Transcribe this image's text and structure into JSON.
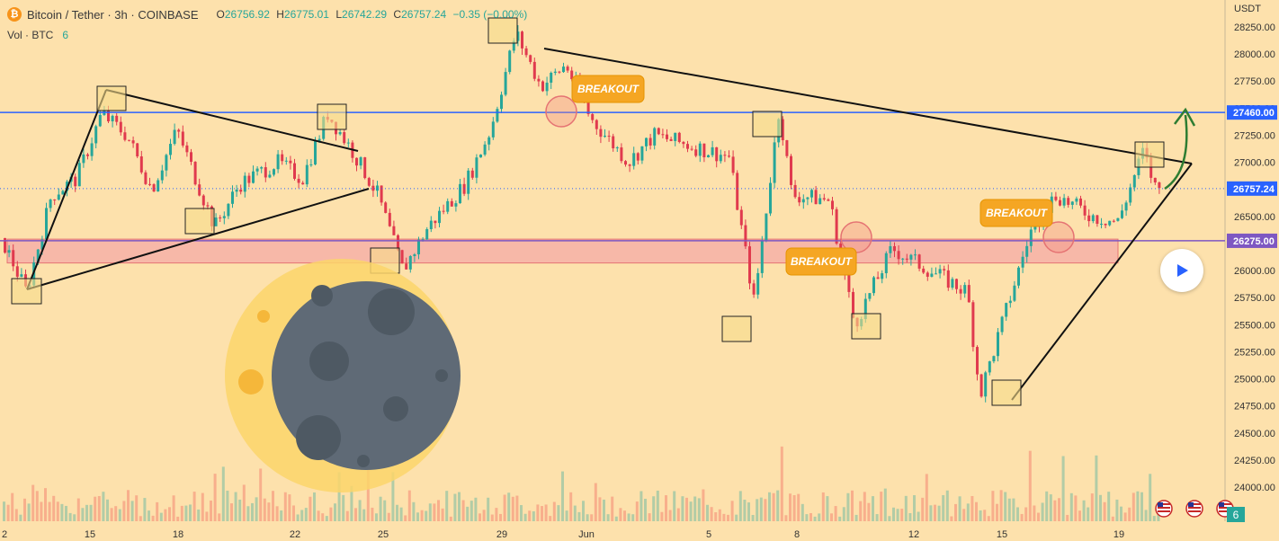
{
  "header": {
    "coin_icon": "bitcoin-icon",
    "symbol": "Bitcoin / Tether · 3h · COINBASE",
    "o_label": "O",
    "o_value": "26756.92",
    "h_label": "H",
    "h_value": "26775.01",
    "l_label": "L",
    "l_value": "26742.29",
    "c_label": "C",
    "c_value": "26757.24",
    "change": "−0.35 (−0.00%)"
  },
  "volume_legend": {
    "label": "Vol · BTC",
    "value": "6"
  },
  "price_axis": {
    "currency": "USDT"
  },
  "badges": {
    "volume_value": "6"
  },
  "colors": {
    "up": "#26a69a",
    "down": "#e03a4e",
    "background": "#fde1ac",
    "accent_line": "#2962ff",
    "zone": "#f4a6a6",
    "breakout": "#f5a623"
  },
  "chart_data": {
    "type": "candlestick",
    "price_range": [
      23950,
      28300
    ],
    "y_ticks": [
      28250,
      28000,
      27750,
      27500,
      27250,
      27000,
      26750,
      26500,
      26250,
      26000,
      25750,
      25500,
      25250,
      25000,
      24750,
      24500,
      24250,
      24000
    ],
    "y_tick_labels": [
      "28250.00",
      "28000.00",
      "27750.00",
      "27500.00",
      "27250.00",
      "27000.00",
      "26750.00",
      "26500.00",
      "26250.00",
      "26000.00",
      "25750.00",
      "25500.00",
      "25250.00",
      "25000.00",
      "24750.00",
      "24500.00",
      "24250.00",
      "24000.00"
    ],
    "x_tick_labels": [
      "2",
      "15",
      "18",
      "22",
      "25",
      "29",
      "Jun",
      "5",
      "8",
      "12",
      "15",
      "19"
    ],
    "price_labels": [
      {
        "value": 27460,
        "text": "27460.00",
        "color": "#2962ff"
      },
      {
        "value": 26757.24,
        "text": "26757.24",
        "color": "#2962ff"
      },
      {
        "value": 26275,
        "text": "26275.00",
        "color": "#7e57c2"
      }
    ],
    "horizontal_lines": [
      {
        "value": 27460,
        "color": "#2962ff"
      },
      {
        "value": 26275,
        "color": "#7e57c2"
      }
    ],
    "support_zone": [
      26070,
      26290
    ],
    "breakout_labels": [
      "BREAKOUT",
      "BREAKOUT",
      "BREAKOUT"
    ],
    "price_path": [
      [
        0,
        26300
      ],
      [
        0.02,
        25800
      ],
      [
        0.04,
        26700
      ],
      [
        0.06,
        26850
      ],
      [
        0.08,
        27450
      ],
      [
        0.1,
        27250
      ],
      [
        0.12,
        26750
      ],
      [
        0.14,
        27300
      ],
      [
        0.16,
        26700
      ],
      [
        0.17,
        26400
      ],
      [
        0.19,
        26800
      ],
      [
        0.22,
        27000
      ],
      [
        0.24,
        26850
      ],
      [
        0.26,
        27450
      ],
      [
        0.28,
        27100
      ],
      [
        0.3,
        26700
      ],
      [
        0.32,
        26000
      ],
      [
        0.34,
        26400
      ],
      [
        0.37,
        26800
      ],
      [
        0.39,
        27300
      ],
      [
        0.41,
        28200
      ],
      [
        0.43,
        27700
      ],
      [
        0.45,
        27900
      ],
      [
        0.47,
        27400
      ],
      [
        0.5,
        27000
      ],
      [
        0.52,
        27250
      ],
      [
        0.55,
        27150
      ],
      [
        0.58,
        27050
      ],
      [
        0.6,
        25700
      ],
      [
        0.62,
        27500
      ],
      [
        0.63,
        26700
      ],
      [
        0.66,
        26650
      ],
      [
        0.68,
        25500
      ],
      [
        0.71,
        26200
      ],
      [
        0.74,
        26000
      ],
      [
        0.77,
        25800
      ],
      [
        0.78,
        24850
      ],
      [
        0.8,
        25600
      ],
      [
        0.82,
        26350
      ],
      [
        0.84,
        26700
      ],
      [
        0.87,
        26500
      ],
      [
        0.89,
        26450
      ],
      [
        0.91,
        27100
      ],
      [
        0.92,
        26757
      ]
    ],
    "volume_profile_note": "volume bars shown below price",
    "volume_range": [
      0,
      200
    ]
  },
  "decoration": {
    "moon_icon": "moon-icon",
    "play_icon": "play-icon",
    "flag_icon": "us-flag-icon"
  }
}
